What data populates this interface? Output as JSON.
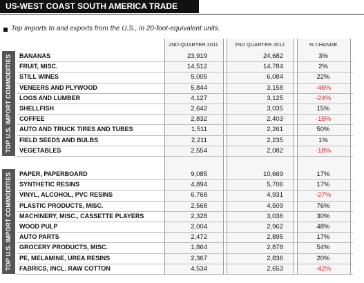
{
  "header": {
    "title": "US-WEST COAST SOUTH AMERICA TRADE",
    "subtitle": "Top imports to and exports from the U.S., in 20-foot-equivalent units."
  },
  "table": {
    "columns": [
      "2ND QUARTER 2011",
      "2ND QUARTER 2012",
      "% CHANGE"
    ],
    "sections": [
      {
        "label": "TOP U.S. IMPORT COMMODITIES",
        "rows": [
          [
            "BANANAS",
            "23,919",
            "24,682",
            "3%"
          ],
          [
            "FRUIT, MISC.",
            "14,512",
            "14,784",
            "2%"
          ],
          [
            "STILL WINES",
            "5,005",
            "6,084",
            "22%"
          ],
          [
            "VENEERS AND PLYWOOD",
            "5,844",
            "3,158",
            "-46%"
          ],
          [
            "LOGS AND LUMBER",
            "4,127",
            "3,125",
            "-24%"
          ],
          [
            "SHELLFISH",
            "2,642",
            "3,035",
            "15%"
          ],
          [
            "COFFEE",
            "2,832",
            "2,403",
            "-15%"
          ],
          [
            "AUTO AND TRUCK TIRES AND TUBES",
            "1,511",
            "2,261",
            "50%"
          ],
          [
            "FIELD SEEDS AND BULBS",
            "2,211",
            "2,235",
            "1%"
          ],
          [
            "VEGETABLES",
            "2,554",
            "2,082",
            "-18%"
          ]
        ]
      },
      {
        "label": "TOP U.S. IMPORT COMMODITIES",
        "rows": [
          [
            "PAPER, PAPERBOARD",
            "9,085",
            "10,669",
            "17%"
          ],
          [
            "SYNTHETIC RESINS",
            "4,894",
            "5,706",
            "17%"
          ],
          [
            "VINYL, ALCOHOL, PVC RESINS",
            "6,768",
            "4,931",
            "-27%"
          ],
          [
            "PLASTIC PRODUCTS, MISC.",
            "2,568",
            "4,509",
            "76%"
          ],
          [
            "MACHINERY, MISC., CASSETTE PLAYERS",
            "2,328",
            "3,036",
            "30%"
          ],
          [
            "WOOD PULP",
            "2,004",
            "2,962",
            "48%"
          ],
          [
            "AUTO PARTS",
            "2,472",
            "2,895",
            "17%"
          ],
          [
            "GROCERY PRODUCTS, MISC.",
            "1,864",
            "2,878",
            "54%"
          ],
          [
            "PE, MELAMINE, UREA RESINS",
            "2,367",
            "2,836",
            "20%"
          ],
          [
            "FABRICS, INCL. RAW COTTON",
            "4,534",
            "2,653",
            "-42%"
          ]
        ]
      }
    ]
  }
}
